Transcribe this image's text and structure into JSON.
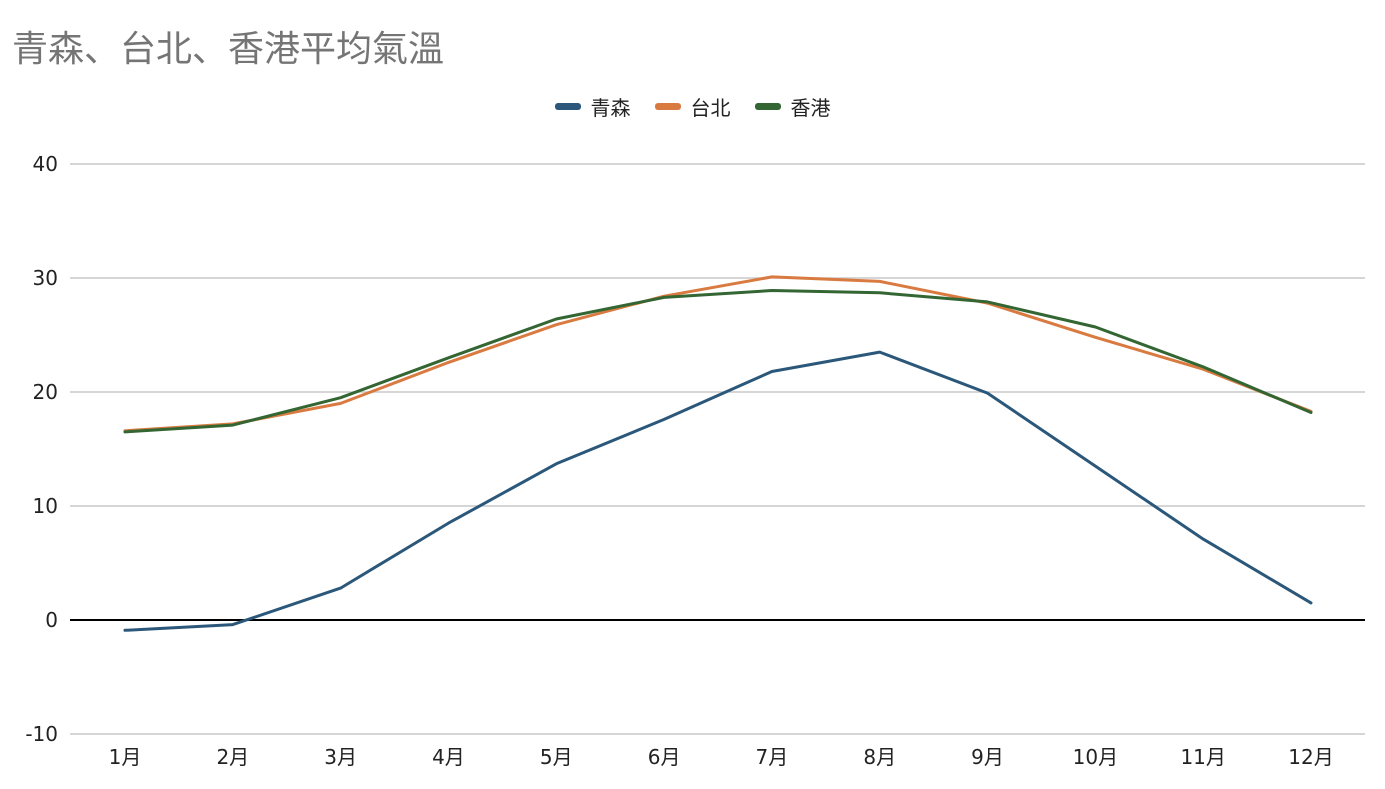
{
  "chart_data": {
    "type": "line",
    "title": "青森、台北、香港平均氣溫",
    "categories": [
      "1月",
      "2月",
      "3月",
      "4月",
      "5月",
      "6月",
      "7月",
      "8月",
      "9月",
      "10月",
      "11月",
      "12月"
    ],
    "series": [
      {
        "name": "青森",
        "color": "#2b587a",
        "values": [
          -0.9,
          -0.4,
          2.8,
          8.5,
          13.7,
          17.6,
          21.8,
          23.5,
          19.9,
          13.5,
          7.1,
          1.5
        ]
      },
      {
        "name": "台北",
        "color": "#d97a40",
        "values": [
          16.6,
          17.2,
          19.0,
          22.6,
          25.9,
          28.4,
          30.1,
          29.7,
          27.8,
          24.8,
          22.0,
          18.3
        ]
      },
      {
        "name": "香港",
        "color": "#336633",
        "values": [
          16.5,
          17.1,
          19.5,
          23.0,
          26.4,
          28.3,
          28.9,
          28.7,
          27.9,
          25.7,
          22.2,
          18.2
        ]
      }
    ],
    "ylim": [
      -10,
      40
    ],
    "yticks": [
      -10,
      0,
      10,
      20,
      30,
      40
    ],
    "ytick_labels": [
      "-10",
      "0",
      "10",
      "20",
      "30",
      "40"
    ],
    "grid": true,
    "legend_position": "top-center",
    "gridline_color": "#c8c8c8",
    "zero_line_color": "#000000"
  }
}
